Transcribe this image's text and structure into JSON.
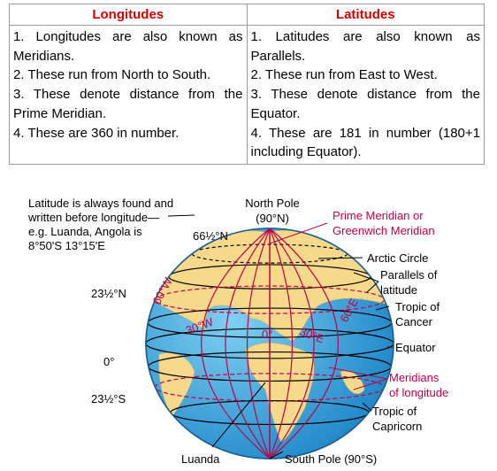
{
  "table": {
    "headers": [
      "Longitudes",
      "Latitudes"
    ],
    "columns": [
      [
        "1. Longitudes are also known as Meridians.",
        "2. These run from North to South.",
        "3. These denote distance from the Prime Meridian.",
        "4. These are 360 in number."
      ],
      [
        "1. Latitudes are also known as Parallels.",
        "2. These run from East to West.",
        "3. These denote distance from the Equator.",
        "4. These are 181 in number (180+1 including Equator)."
      ]
    ]
  },
  "diagram": {
    "note": [
      "Latitude is always found and",
      "written before longitude—",
      "e.g. Luanda, Angola is",
      "8°50'S 13°15'E"
    ],
    "labels": [
      {
        "lines": [
          "66½°N"
        ]
      },
      {
        "lines": [
          "North Pole",
          "(90°N)"
        ]
      },
      {
        "lines": [
          "Prime Meridian or",
          "Greenwich Meridian"
        ]
      },
      {
        "lines": [
          "Arctic Circle"
        ]
      },
      {
        "lines": [
          "Parallels of",
          "latitude"
        ]
      },
      {
        "lines": [
          "Tropic of",
          "Cancer"
        ]
      },
      {
        "lines": [
          "23½°N"
        ]
      },
      {
        "lines": [
          "0°"
        ]
      },
      {
        "lines": [
          "Equator"
        ]
      },
      {
        "lines": [
          "Meridians",
          "of longitude"
        ]
      },
      {
        "lines": [
          "23½°S"
        ]
      },
      {
        "lines": [
          "Tropic of",
          "Capricorn"
        ]
      },
      {
        "lines": [
          "Luanda"
        ]
      },
      {
        "lines": [
          "South Pole (90°S)"
        ]
      }
    ],
    "meridian_labels": [
      "60°W",
      "30°W",
      "0°",
      "30°E",
      "60°E"
    ]
  }
}
